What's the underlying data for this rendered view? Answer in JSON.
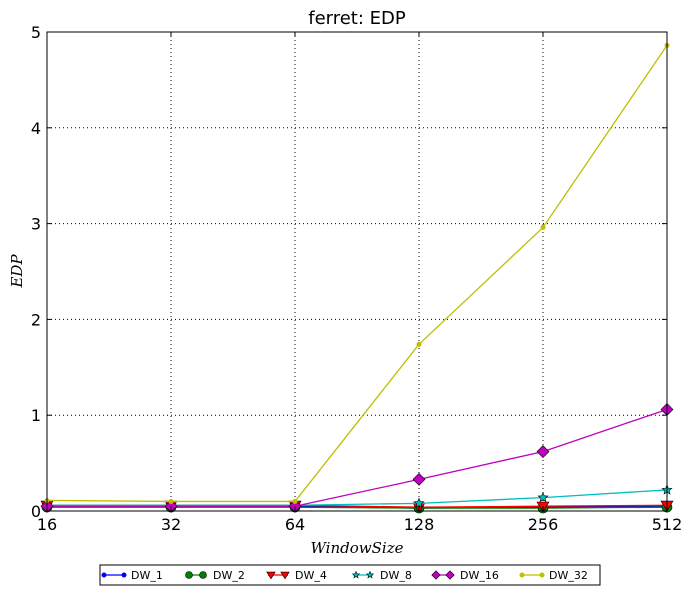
{
  "chart_data": {
    "type": "line",
    "title": "ferret: EDP",
    "xlabel": "WindowSize",
    "ylabel": "EDP",
    "categories": [
      "16",
      "32",
      "64",
      "128",
      "256",
      "512"
    ],
    "ylim": [
      0,
      5
    ],
    "yticks": [
      "0",
      "1",
      "2",
      "3",
      "4",
      "5"
    ],
    "grid": true,
    "legend_position": "bottom-center",
    "series": [
      {
        "name": "DW_1",
        "color": "#0000ff",
        "marker": "point",
        "values": [
          0.05,
          0.05,
          0.05,
          0.03,
          0.04,
          0.05
        ]
      },
      {
        "name": "DW_2",
        "color": "#007f00",
        "marker": "circle",
        "values": [
          0.04,
          0.04,
          0.04,
          0.03,
          0.03,
          0.04
        ]
      },
      {
        "name": "DW_4",
        "color": "#ff0000",
        "marker": "triangle_down",
        "values": [
          0.06,
          0.06,
          0.06,
          0.04,
          0.05,
          0.06
        ]
      },
      {
        "name": "DW_8",
        "color": "#00bfbf",
        "marker": "star",
        "values": [
          0.06,
          0.06,
          0.06,
          0.08,
          0.14,
          0.22
        ]
      },
      {
        "name": "DW_16",
        "color": "#bf00bf",
        "marker": "diamond",
        "values": [
          0.05,
          0.05,
          0.05,
          0.33,
          0.62,
          1.06
        ]
      },
      {
        "name": "DW_32",
        "color": "#bfbf00",
        "marker": "point",
        "values": [
          0.11,
          0.1,
          0.1,
          1.74,
          2.96,
          4.86
        ]
      }
    ]
  }
}
